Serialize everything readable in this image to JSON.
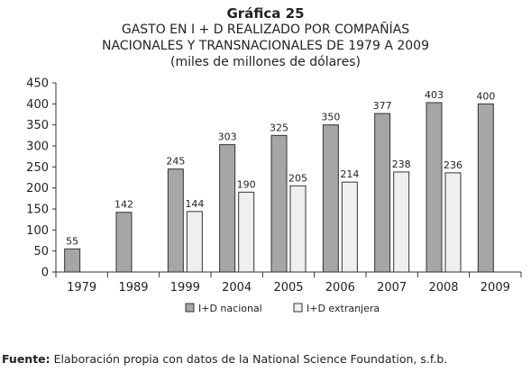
{
  "figure_label": "Gráfica 25",
  "title_lines": [
    "GASTO EN I + D REALIZADO POR COMPAÑÍAS",
    "NACIONALES Y TRANSNACIONALES DE 1979 A 2009",
    "(miles de millones de dólares)"
  ],
  "source": {
    "label": "Fuente:",
    "text": " Elaboración propia con datos de la National Science Foundation, s.f.b."
  },
  "colors": {
    "nacional": "#a6a6a6",
    "extranjera": "#efefef",
    "stroke": "#333333"
  },
  "chart_data": {
    "type": "bar",
    "categories": [
      "1979",
      "1989",
      "1999",
      "2004",
      "2005",
      "2006",
      "2007",
      "2008",
      "2009"
    ],
    "series": [
      {
        "name": "I+D nacional",
        "values": [
          55,
          142,
          245,
          303,
          325,
          350,
          377,
          403,
          400
        ]
      },
      {
        "name": "I+D extranjera",
        "values": [
          null,
          null,
          144,
          190,
          205,
          214,
          238,
          236,
          null
        ]
      }
    ],
    "yticks": [
      0,
      50,
      100,
      150,
      200,
      250,
      300,
      350,
      400,
      450
    ],
    "ylim": [
      0,
      450
    ],
    "legend_position": "bottom-center",
    "grid": false
  }
}
